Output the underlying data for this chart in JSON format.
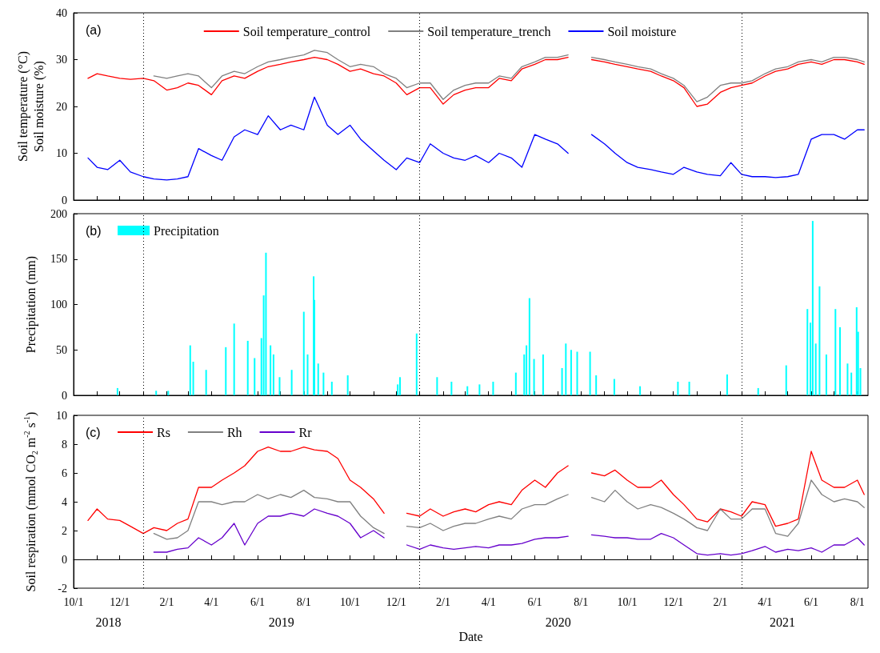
{
  "chart_data": [
    {
      "type": "line",
      "title": "(a)",
      "ylabel": "Soil temperature (°C)\nSoil moisture (%)",
      "legend": "top",
      "grid": false,
      "tick_labels": "y",
      "xlim": [
        "2018-10-01",
        "2021-08-15"
      ],
      "ylim": [
        0,
        40
      ],
      "yticks": [
        0,
        10,
        20,
        30,
        40
      ],
      "xticks": [
        "2018-10-01",
        "2018-11-01",
        "2018-12-01",
        "2019-01-01",
        "2019-02-01",
        "2019-03-01",
        "2019-04-01",
        "2019-05-01",
        "2019-06-01",
        "2019-07-01",
        "2019-08-01",
        "2019-09-01",
        "2019-10-01",
        "2019-11-01",
        "2019-12-01",
        "2020-01-01",
        "2020-02-01",
        "2020-03-01",
        "2020-04-01",
        "2020-05-01",
        "2020-06-01",
        "2020-07-01",
        "2020-08-01",
        "2020-09-01",
        "2020-10-01",
        "2020-11-01",
        "2020-12-01",
        "2021-01-01",
        "2021-02-01",
        "2021-03-01",
        "2021-04-01",
        "2021-05-01",
        "2021-06-01",
        "2021-07-01",
        "2021-08-01"
      ],
      "ref_lines": [
        {
          "axis": "x",
          "value": "2019-01-01",
          "line_style": "dotted",
          "color": "#000000"
        },
        {
          "axis": "x",
          "value": "2020-01-01",
          "line_style": "dotted",
          "color": "#000000"
        },
        {
          "axis": "x",
          "value": "2021-03-01",
          "line_style": "dotted",
          "color": "#000000"
        }
      ],
      "x": [
        "2018-10-20",
        "2018-11-01",
        "2018-11-15",
        "2018-12-01",
        "2018-12-15",
        "2019-01-01",
        "2019-01-15",
        "2019-02-01",
        "2019-02-15",
        "2019-03-01",
        "2019-03-15",
        "2019-04-01",
        "2019-04-15",
        "2019-05-01",
        "2019-05-15",
        "2019-06-01",
        "2019-06-15",
        "2019-07-01",
        "2019-07-15",
        "2019-08-01",
        "2019-08-15",
        "2019-09-01",
        "2019-09-15",
        "2019-10-01",
        "2019-10-15",
        "2019-11-01",
        "2019-11-15",
        "2019-12-01",
        "2019-12-15",
        "2020-01-01",
        "2020-01-15",
        "2020-02-01",
        "2020-02-15",
        "2020-03-01",
        "2020-03-15",
        "2020-04-01",
        "2020-04-15",
        "2020-05-01",
        "2020-05-15",
        "2020-06-01",
        "2020-06-15",
        "2020-07-01",
        "2020-07-15",
        "2020-08-01",
        "2020-08-15",
        "2020-09-01",
        "2020-09-15",
        "2020-10-01",
        "2020-10-15",
        "2020-11-01",
        "2020-11-15",
        "2020-12-01",
        "2020-12-15",
        "2021-01-01",
        "2021-01-15",
        "2021-02-01",
        "2021-02-15",
        "2021-03-01",
        "2021-03-15",
        "2021-04-01",
        "2021-04-15",
        "2021-05-01",
        "2021-05-15",
        "2021-06-01",
        "2021-06-15",
        "2021-07-01",
        "2021-07-15",
        "2021-08-01",
        "2021-08-10"
      ],
      "series": [
        {
          "name": "Soil temperature_control",
          "color": "#ff0000",
          "values": [
            26,
            27,
            26.5,
            26,
            25.8,
            26,
            25.5,
            23.5,
            24,
            25,
            24.5,
            22.5,
            25.5,
            26.5,
            26,
            27.5,
            28.5,
            29,
            29.5,
            30,
            30.5,
            30,
            29,
            27.5,
            28,
            27,
            26.5,
            25,
            22.5,
            24,
            24,
            20.5,
            22.5,
            23.5,
            24,
            24,
            26,
            25.5,
            28,
            29,
            30,
            30,
            30.5,
            null,
            30,
            29.5,
            29,
            28.5,
            28,
            27.5,
            26.5,
            25.5,
            24,
            20,
            20.5,
            23,
            24,
            24.5,
            25,
            26.5,
            27.5,
            28,
            29,
            29.5,
            29,
            30,
            30,
            29.5,
            29
          ]
        },
        {
          "name": "Soil temperature_trench",
          "color": "#808080",
          "values": [
            null,
            null,
            null,
            null,
            null,
            null,
            26.5,
            26,
            26.5,
            27,
            26.5,
            24,
            26.5,
            27.5,
            27,
            28.5,
            29.5,
            30,
            30.5,
            31,
            32,
            31.5,
            30,
            28.5,
            29,
            28.5,
            27,
            26,
            24,
            25,
            25,
            21.5,
            23.5,
            24.5,
            25,
            25,
            26.5,
            26,
            28.5,
            29.5,
            30.5,
            30.5,
            31,
            null,
            30.5,
            30,
            29.5,
            29,
            28.5,
            28,
            27,
            26,
            24.5,
            21,
            22,
            24.5,
            25,
            25,
            25.5,
            27,
            28,
            28.5,
            29.5,
            30,
            29.5,
            30.5,
            30.5,
            30,
            29.5
          ]
        },
        {
          "name": "Soil moisture",
          "color": "#0000ff",
          "values": [
            9,
            7,
            6.5,
            8.5,
            6,
            5,
            4.5,
            4.3,
            4.5,
            5,
            11,
            9.5,
            8.5,
            13.5,
            15,
            14,
            18,
            15,
            16,
            15,
            22,
            16,
            14,
            16,
            13,
            10.5,
            8.5,
            6.5,
            9,
            8,
            12,
            10,
            9,
            8.5,
            9.5,
            8,
            10,
            9,
            7,
            14,
            13,
            12,
            10,
            null,
            14,
            12,
            10,
            8,
            7,
            6.5,
            6,
            5.5,
            7,
            6,
            5.5,
            5.2,
            8,
            5.5,
            5,
            5,
            4.8,
            5,
            5.5,
            13,
            14,
            14,
            13,
            15,
            15
          ]
        }
      ]
    },
    {
      "type": "bar",
      "title": "(b)",
      "ylabel": "Precipitation (mm)",
      "legend": "top left",
      "grid": false,
      "tick_labels": "y",
      "xlim": [
        "2018-10-01",
        "2021-08-15"
      ],
      "ylim": [
        0,
        200
      ],
      "yticks": [
        0,
        50,
        100,
        150,
        200
      ],
      "xticks": [
        "2018-10-01",
        "2018-11-01",
        "2018-12-01",
        "2019-01-01",
        "2019-02-01",
        "2019-03-01",
        "2019-04-01",
        "2019-05-01",
        "2019-06-01",
        "2019-07-01",
        "2019-08-01",
        "2019-09-01",
        "2019-10-01",
        "2019-11-01",
        "2019-12-01",
        "2020-01-01",
        "2020-02-01",
        "2020-03-01",
        "2020-04-01",
        "2020-05-01",
        "2020-06-01",
        "2020-07-01",
        "2020-08-01",
        "2020-09-01",
        "2020-10-01",
        "2020-11-01",
        "2020-12-01",
        "2021-01-01",
        "2021-02-01",
        "2021-03-01",
        "2021-04-01",
        "2021-05-01",
        "2021-06-01",
        "2021-07-01",
        "2021-08-01"
      ],
      "ref_lines": [
        {
          "axis": "x",
          "value": "2019-01-01",
          "line_style": "dotted",
          "color": "#000000"
        },
        {
          "axis": "x",
          "value": "2020-01-01",
          "line_style": "dotted",
          "color": "#000000"
        },
        {
          "axis": "x",
          "value": "2021-03-01",
          "line_style": "dotted",
          "color": "#000000"
        }
      ],
      "series": [
        {
          "name": "Precipitation",
          "color": "#00ffff",
          "x": [
            "2018-11-28",
            "2019-01-18",
            "2019-02-03",
            "2019-03-04",
            "2019-03-08",
            "2019-03-25",
            "2019-04-20",
            "2019-05-01",
            "2019-05-19",
            "2019-05-28",
            "2019-06-06",
            "2019-06-09",
            "2019-06-12",
            "2019-06-18",
            "2019-06-22",
            "2019-06-30",
            "2019-07-16",
            "2019-08-01",
            "2019-08-06",
            "2019-08-14",
            "2019-08-15",
            "2019-08-20",
            "2019-08-27",
            "2019-09-07",
            "2019-09-28",
            "2019-12-03",
            "2019-12-06",
            "2019-12-28",
            "2020-01-24",
            "2020-02-12",
            "2020-03-04",
            "2020-03-20",
            "2020-04-07",
            "2020-05-07",
            "2020-05-18",
            "2020-05-21",
            "2020-05-25",
            "2020-05-31",
            "2020-06-12",
            "2020-07-07",
            "2020-07-12",
            "2020-07-19",
            "2020-07-27",
            "2020-08-13",
            "2020-08-21",
            "2020-09-14",
            "2020-10-18",
            "2020-12-07",
            "2020-12-22",
            "2021-02-10",
            "2021-03-23",
            "2021-04-29",
            "2021-05-27",
            "2021-05-31",
            "2021-06-03",
            "2021-06-07",
            "2021-06-12",
            "2021-06-21",
            "2021-07-03",
            "2021-07-09",
            "2021-07-19",
            "2021-07-24",
            "2021-07-31",
            "2021-08-02",
            "2021-08-05"
          ],
          "values": [
            8,
            5,
            5,
            55,
            37,
            28,
            53,
            79,
            60,
            41,
            63,
            110,
            157,
            55,
            45,
            20,
            28,
            92,
            45,
            131,
            105,
            35,
            25,
            15,
            22,
            12,
            20,
            68,
            20,
            15,
            10,
            12,
            15,
            25,
            45,
            55,
            107,
            40,
            45,
            30,
            57,
            50,
            48,
            48,
            22,
            18,
            10,
            15,
            15,
            23,
            8,
            33,
            95,
            80,
            192,
            57,
            120,
            45,
            95,
            75,
            35,
            25,
            97,
            70,
            30
          ]
        }
      ]
    },
    {
      "type": "line",
      "title": "(c)",
      "xlabel": "Date",
      "ylabel": "Soil respiration (mmol CO$_{2}$ m$^{-2}$ s$^{-1}$)",
      "legend": "top left",
      "grid": false,
      "xlim": [
        "2018-10-01",
        "2021-08-15"
      ],
      "ylim": [
        -2,
        10
      ],
      "yticks": [
        -2,
        0,
        2,
        4,
        6,
        8,
        10
      ],
      "xticks": [
        {
          "value": "2018-10-01",
          "label": "10/1"
        },
        {
          "value": "2018-11-01",
          "label": null
        },
        {
          "value": "2018-12-01",
          "label": "12/1"
        },
        {
          "value": "2019-01-01",
          "label": null
        },
        {
          "value": "2019-02-01",
          "label": "2/1"
        },
        {
          "value": "2019-03-01",
          "label": null
        },
        {
          "value": "2019-04-01",
          "label": "4/1"
        },
        {
          "value": "2019-05-01",
          "label": null
        },
        {
          "value": "2019-06-01",
          "label": "6/1"
        },
        {
          "value": "2019-07-01",
          "label": null
        },
        {
          "value": "2019-08-01",
          "label": "8/1"
        },
        {
          "value": "2019-09-01",
          "label": null
        },
        {
          "value": "2019-10-01",
          "label": "10/1"
        },
        {
          "value": "2019-11-01",
          "label": null
        },
        {
          "value": "2019-12-01",
          "label": "12/1"
        },
        {
          "value": "2020-01-01",
          "label": null
        },
        {
          "value": "2020-02-01",
          "label": "2/1"
        },
        {
          "value": "2020-03-01",
          "label": null
        },
        {
          "value": "2020-04-01",
          "label": "4/1"
        },
        {
          "value": "2020-05-01",
          "label": null
        },
        {
          "value": "2020-06-01",
          "label": "6/1"
        },
        {
          "value": "2020-07-01",
          "label": null
        },
        {
          "value": "2020-08-01",
          "label": "8/1"
        },
        {
          "value": "2020-09-01",
          "label": null
        },
        {
          "value": "2020-10-01",
          "label": "10/1"
        },
        {
          "value": "2020-11-01",
          "label": null
        },
        {
          "value": "2020-12-01",
          "label": "12/1"
        },
        {
          "value": "2021-01-01",
          "label": null
        },
        {
          "value": "2021-02-01",
          "label": "2/1"
        },
        {
          "value": "2021-03-01",
          "label": null
        },
        {
          "value": "2021-04-01",
          "label": "4/1"
        },
        {
          "value": "2021-05-01",
          "label": null
        },
        {
          "value": "2021-06-01",
          "label": "6/1"
        },
        {
          "value": "2021-07-01",
          "label": null
        },
        {
          "value": "2021-08-01",
          "label": "8/1"
        }
      ],
      "ref_lines": [
        {
          "axis": "x",
          "value": "2019-01-01",
          "line_style": "dotted",
          "color": "#000000"
        },
        {
          "axis": "x",
          "value": "2020-01-01",
          "line_style": "dotted",
          "color": "#000000"
        },
        {
          "axis": "x",
          "value": "2021-03-01",
          "line_style": "dotted",
          "color": "#000000"
        }
      ],
      "annotations": [
        "2018",
        "2019",
        "2020",
        "2021"
      ],
      "x": [
        "2018-10-20",
        "2018-11-01",
        "2018-11-15",
        "2018-12-01",
        "2018-12-15",
        "2019-01-01",
        "2019-01-15",
        "2019-02-01",
        "2019-02-15",
        "2019-03-01",
        "2019-03-15",
        "2019-04-01",
        "2019-04-15",
        "2019-05-01",
        "2019-05-15",
        "2019-06-01",
        "2019-06-15",
        "2019-07-01",
        "2019-07-15",
        "2019-08-01",
        "2019-08-15",
        "2019-09-01",
        "2019-09-15",
        "2019-10-01",
        "2019-10-15",
        "2019-11-01",
        "2019-11-15",
        "2019-12-01",
        "2019-12-15",
        "2020-01-01",
        "2020-01-15",
        "2020-02-01",
        "2020-02-15",
        "2020-03-01",
        "2020-03-15",
        "2020-04-01",
        "2020-04-15",
        "2020-05-01",
        "2020-05-15",
        "2020-06-01",
        "2020-06-15",
        "2020-07-01",
        "2020-07-15",
        "2020-08-01",
        "2020-08-15",
        "2020-09-01",
        "2020-09-15",
        "2020-10-01",
        "2020-10-15",
        "2020-11-01",
        "2020-11-15",
        "2020-12-01",
        "2020-12-15",
        "2021-01-01",
        "2021-01-15",
        "2021-02-01",
        "2021-02-15",
        "2021-03-01",
        "2021-03-15",
        "2021-04-01",
        "2021-04-15",
        "2021-05-01",
        "2021-05-15",
        "2021-06-01",
        "2021-06-15",
        "2021-07-01",
        "2021-07-15",
        "2021-08-01",
        "2021-08-10"
      ],
      "series": [
        {
          "name": "Rs",
          "color": "#ff0000",
          "values": [
            2.7,
            3.5,
            2.8,
            2.7,
            2.3,
            1.8,
            2.2,
            2.0,
            2.5,
            2.8,
            5.0,
            5.0,
            5.5,
            6.0,
            6.5,
            7.5,
            7.8,
            7.5,
            7.5,
            7.8,
            7.6,
            7.5,
            7.0,
            5.5,
            5.0,
            4.2,
            3.2,
            null,
            3.2,
            3.0,
            3.5,
            3.0,
            3.3,
            3.5,
            3.3,
            3.8,
            4.0,
            3.8,
            4.8,
            5.5,
            5.0,
            6.0,
            6.5,
            null,
            6.0,
            5.8,
            6.2,
            5.5,
            5.0,
            5.0,
            5.5,
            4.5,
            3.8,
            2.8,
            2.6,
            3.5,
            3.3,
            3.0,
            4.0,
            3.8,
            2.3,
            2.5,
            2.8,
            7.5,
            5.5,
            5.0,
            5.0,
            5.5,
            4.5
          ]
        },
        {
          "name": "Rh",
          "color": "#808080",
          "values": [
            null,
            null,
            null,
            null,
            null,
            null,
            1.8,
            1.4,
            1.5,
            2.0,
            4.0,
            4.0,
            3.8,
            4.0,
            4.0,
            4.5,
            4.2,
            4.5,
            4.3,
            4.8,
            4.3,
            4.2,
            4.0,
            4.0,
            3.0,
            2.2,
            1.8,
            null,
            2.3,
            2.2,
            2.5,
            2.0,
            2.3,
            2.5,
            2.5,
            2.8,
            3.0,
            2.8,
            3.5,
            3.8,
            3.8,
            4.2,
            4.5,
            null,
            4.3,
            4.0,
            4.8,
            4.0,
            3.5,
            3.8,
            3.6,
            3.2,
            2.8,
            2.2,
            2.0,
            3.5,
            2.8,
            2.8,
            3.5,
            3.5,
            1.8,
            1.6,
            2.5,
            5.5,
            4.5,
            4.0,
            4.2,
            4.0,
            3.6
          ]
        },
        {
          "name": "Rr",
          "color": "#6600cc",
          "values": [
            null,
            null,
            null,
            null,
            null,
            null,
            0.5,
            0.5,
            0.7,
            0.8,
            1.5,
            1.0,
            1.5,
            2.5,
            1.0,
            2.5,
            3.0,
            3.0,
            3.2,
            3.0,
            3.5,
            3.2,
            3.0,
            2.5,
            1.5,
            2.0,
            1.5,
            null,
            1.0,
            0.7,
            1.0,
            0.8,
            0.7,
            0.8,
            0.9,
            0.8,
            1.0,
            1.0,
            1.1,
            1.4,
            1.5,
            1.5,
            1.6,
            null,
            1.7,
            1.6,
            1.5,
            1.5,
            1.4,
            1.4,
            1.8,
            1.5,
            1.0,
            0.4,
            0.3,
            0.4,
            0.3,
            0.4,
            0.6,
            0.9,
            0.5,
            0.7,
            0.6,
            0.8,
            0.5,
            1.0,
            1.0,
            1.5,
            1.0
          ]
        }
      ]
    }
  ]
}
